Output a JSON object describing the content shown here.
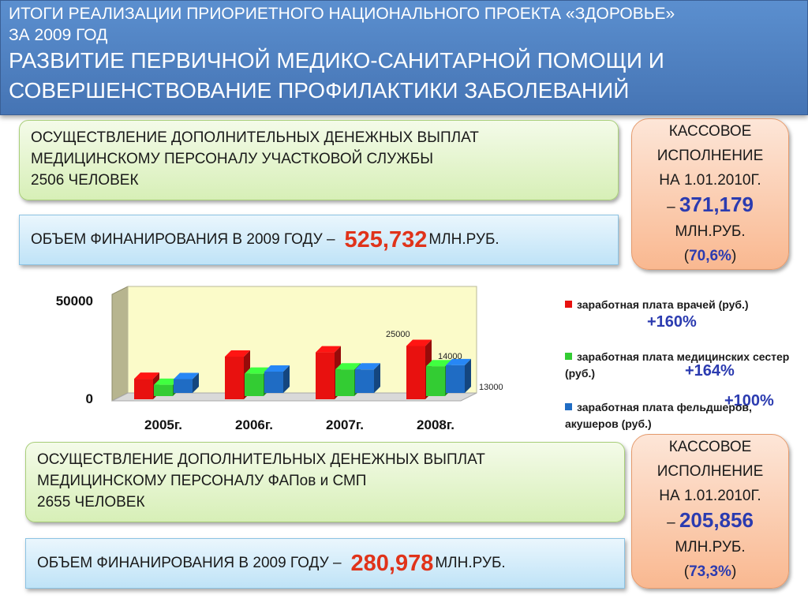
{
  "header": {
    "line1": "ИТОГИ РЕАЛИЗАЦИИ ПРИОРИЕТНОГО НАЦИОНАЛЬНОГО ПРОЕКТА «ЗДОРОВЬЕ»",
    "line2": "ЗА 2009 ГОД",
    "line3": "РАЗВИТИЕ ПЕРВИЧНОЙ МЕДИКО-САНИТАРНОЙ ПОМОЩИ И",
    "line4": "СОВЕРШЕНСТВОВАНИЕ ПРОФИЛАКТИКИ ЗАБОЛЕВАНИЙ"
  },
  "block1": {
    "line1": "ОСУЩЕСТВЛЕНИЕ ДОПОЛНИТЕЛЬНЫХ ДЕНЕЖНЫХ ВЫПЛАТ",
    "line2": "МЕДИЦИНСКОМУ ПЕРСОНАЛУ УЧАСТКОВОЙ СЛУЖБЫ",
    "line3": "2506 ЧЕЛОВЕК"
  },
  "funding1": {
    "prefix": "ОБЪЕМ ФИНАНИРОВАНИЯ В 2009 ГОДУ –",
    "amount": "525,732",
    "unit": "МЛН.РУБ."
  },
  "cash1": {
    "line1": "КАССОВОЕ",
    "line2": "ИСПОЛНЕНИЕ",
    "line3": "НА 1.01.2010Г.",
    "dash": "–",
    "amount": "371,179",
    "unit": "МЛН.РУБ.",
    "pct_open": "(",
    "pct": "70,6%",
    "pct_close": ")"
  },
  "block2": {
    "line1": "ОСУЩЕСТВЛЕНИЕ ДОПОЛНИТЕЛЬНЫХ ДЕНЕЖНЫХ ВЫПЛАТ",
    "line2": "МЕДИЦИНСКОМУ ПЕРСОНАЛУ ФАПов и СМП",
    "line3": "2655 ЧЕЛОВЕК"
  },
  "funding2": {
    "prefix": "ОБЪЕМ ФИНАНИРОВАНИЯ В 2009 ГОДУ –",
    "amount": "280,978",
    "unit": "МЛН.РУБ."
  },
  "cash2": {
    "line1": "КАССОВОЕ",
    "line2": "ИСПОЛНЕНИЕ",
    "line3": "НА 1.01.2010Г.",
    "dash": "–",
    "amount": "205,856",
    "unit": "МЛН.РУБ.",
    "pct_open": "(",
    "pct": "73,3%",
    "pct_close": ")"
  },
  "chart_data": {
    "type": "bar",
    "title": "",
    "xlabel": "",
    "ylabel": "",
    "ylim": [
      0,
      50000
    ],
    "y_ticks": [
      "0",
      "50000"
    ],
    "categories": [
      "2005г.",
      "2006г.",
      "2007г.",
      "2008г."
    ],
    "series": [
      {
        "name": "заработная плата врачей (руб.)",
        "color": "#e8110f",
        "growth": "+160%",
        "values": [
          9600,
          20000,
          22000,
          25000
        ]
      },
      {
        "name": "заработная плата медицинских сестер (руб.)",
        "color": "#33cc33",
        "growth": "+164%",
        "values": [
          5300,
          10500,
          12500,
          14000
        ]
      },
      {
        "name": "заработная плата фельдшеров, акушеров (руб.)",
        "color": "#1f6cc4",
        "growth": "+100%",
        "values": [
          6500,
          10000,
          11000,
          13000
        ]
      }
    ],
    "data_labels": {
      "2008г.": [
        "25000",
        "14000",
        "13000"
      ]
    },
    "grid": false,
    "legend_position": "right"
  }
}
